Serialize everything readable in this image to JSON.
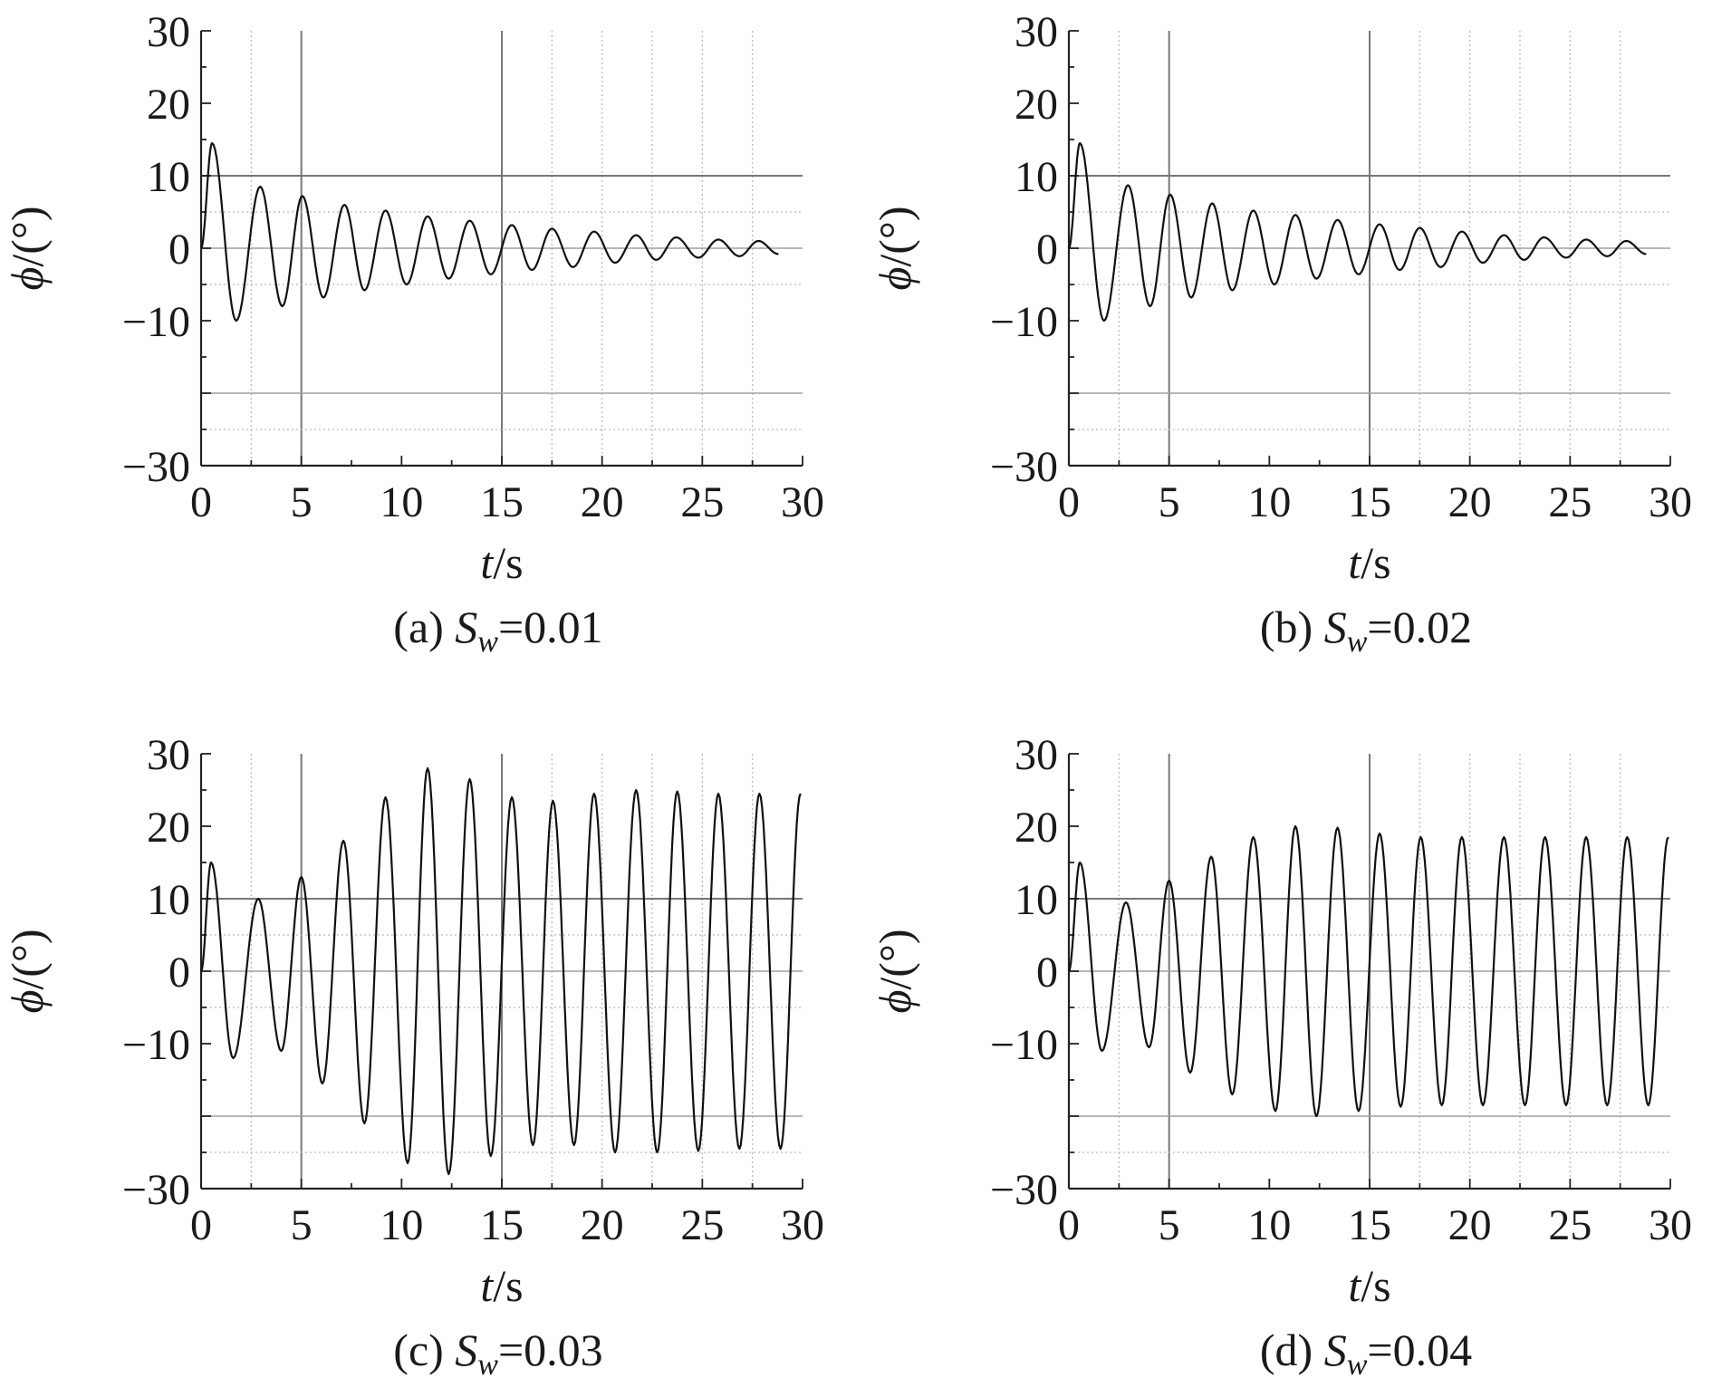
{
  "chart_data": [
    {
      "type": "line",
      "caption": {
        "prefix": "(a) ",
        "sym": "S",
        "sub": "w",
        "rest": "=0.01"
      },
      "xlabel": {
        "italic": "t",
        "rest": "/s"
      },
      "ylabel": {
        "italic": "ϕ",
        "rest": "/(°)"
      },
      "xlim": [
        0,
        30
      ],
      "ylim": [
        -30,
        30
      ],
      "xticks": [
        "0",
        "5",
        "10",
        "15",
        "20",
        "25",
        "30"
      ],
      "yticks": [
        "−30",
        "−10",
        "0",
        "10",
        "20",
        "30"
      ],
      "series": [
        {
          "x": [
            0,
            0.55,
            1.75,
            2.95,
            4.05,
            5.05,
            6.1,
            7.15,
            8.15,
            9.2,
            10.25,
            11.3,
            12.35,
            13.4,
            14.45,
            15.5,
            16.5,
            17.5,
            18.55,
            19.6,
            20.65,
            21.7,
            22.7,
            23.7,
            24.8,
            25.8,
            26.85,
            27.8,
            28.8
          ],
          "y": [
            0,
            14.5,
            -10,
            8.5,
            -8,
            7.2,
            -6.8,
            6,
            -5.8,
            5.2,
            -5,
            4.4,
            -4.2,
            3.8,
            -3.6,
            3.2,
            -3,
            2.7,
            -2.6,
            2.3,
            -2,
            1.8,
            -1.6,
            1.5,
            -1.3,
            1.2,
            -1.1,
            1,
            -0.8
          ]
        }
      ]
    },
    {
      "type": "line",
      "caption": {
        "prefix": "(b) ",
        "sym": "S",
        "sub": "w",
        "rest": "=0.02"
      },
      "xlabel": {
        "italic": "t",
        "rest": "/s"
      },
      "ylabel": {
        "italic": "ϕ",
        "rest": "/(°)"
      },
      "xlim": [
        0,
        30
      ],
      "ylim": [
        -30,
        30
      ],
      "xticks": [
        "0",
        "5",
        "10",
        "15",
        "20",
        "25",
        "30"
      ],
      "yticks": [
        "−30",
        "−10",
        "0",
        "10",
        "20",
        "30"
      ],
      "series": [
        {
          "x": [
            0,
            0.55,
            1.75,
            2.95,
            4.05,
            5.05,
            6.1,
            7.15,
            8.15,
            9.2,
            10.25,
            11.3,
            12.35,
            13.4,
            14.45,
            15.5,
            16.5,
            17.5,
            18.55,
            19.6,
            20.65,
            21.7,
            22.7,
            23.7,
            24.8,
            25.8,
            26.85,
            27.8,
            28.8
          ],
          "y": [
            0,
            14.5,
            -10,
            8.7,
            -8,
            7.4,
            -6.8,
            6.2,
            -5.8,
            5.2,
            -5,
            4.6,
            -4.2,
            3.9,
            -3.6,
            3.3,
            -3,
            2.8,
            -2.6,
            2.3,
            -2,
            1.8,
            -1.6,
            1.5,
            -1.3,
            1.2,
            -1.1,
            1,
            -0.8
          ]
        }
      ]
    },
    {
      "type": "line",
      "caption": {
        "prefix": "(c) ",
        "sym": "S",
        "sub": "w",
        "rest": "=0.03"
      },
      "xlabel": {
        "italic": "t",
        "rest": "/s"
      },
      "ylabel": {
        "italic": "ϕ",
        "rest": "/(°)"
      },
      "xlim": [
        0,
        30
      ],
      "ylim": [
        -30,
        30
      ],
      "xticks": [
        "0",
        "5",
        "10",
        "15",
        "20",
        "25",
        "30"
      ],
      "yticks": [
        "−30",
        "−10",
        "0",
        "10",
        "20",
        "30"
      ],
      "series": [
        {
          "x": [
            0,
            0.5,
            1.6,
            2.85,
            4,
            5,
            6.05,
            7.1,
            8.15,
            9.2,
            10.3,
            11.3,
            12.35,
            13.4,
            14.45,
            15.5,
            16.55,
            17.55,
            18.6,
            19.6,
            20.65,
            21.7,
            22.75,
            23.75,
            24.8,
            25.8,
            26.85,
            27.85,
            28.9,
            29.9
          ],
          "y": [
            0,
            15,
            -12,
            10,
            -11,
            13,
            -15.5,
            18,
            -21,
            24,
            -26.5,
            28,
            -28,
            26.5,
            -25.5,
            24,
            -24,
            23.5,
            -24,
            24.5,
            -25,
            25,
            -25,
            24.8,
            -24.8,
            24.5,
            -24.5,
            24.5,
            -24.5,
            24.5
          ]
        }
      ]
    },
    {
      "type": "line",
      "caption": {
        "prefix": "(d) ",
        "sym": "S",
        "sub": "w",
        "rest": "=0.04"
      },
      "xlabel": {
        "italic": "t",
        "rest": "/s"
      },
      "ylabel": {
        "italic": "ϕ",
        "rest": "/(°)"
      },
      "xlim": [
        0,
        30
      ],
      "ylim": [
        -30,
        30
      ],
      "xticks": [
        "0",
        "5",
        "10",
        "15",
        "20",
        "25",
        "30"
      ],
      "yticks": [
        "−30",
        "−10",
        "0",
        "10",
        "20",
        "30"
      ],
      "series": [
        {
          "x": [
            0,
            0.55,
            1.65,
            2.85,
            4,
            5,
            6.05,
            7.1,
            8.15,
            9.2,
            10.3,
            11.3,
            12.35,
            13.4,
            14.45,
            15.5,
            16.55,
            17.55,
            18.6,
            19.6,
            20.65,
            21.7,
            22.75,
            23.75,
            24.8,
            25.8,
            26.85,
            27.85,
            28.9,
            29.9
          ],
          "y": [
            0,
            15,
            -11,
            9.5,
            -10.5,
            12.5,
            -14,
            15.8,
            -17,
            18.5,
            -19.3,
            20,
            -20,
            19.8,
            -19.3,
            19,
            -18.7,
            18.5,
            -18.5,
            18.5,
            -18.5,
            18.5,
            -18.5,
            18.5,
            -18.5,
            18.5,
            -18.5,
            18.5,
            -18.5,
            18.5
          ]
        }
      ]
    }
  ]
}
